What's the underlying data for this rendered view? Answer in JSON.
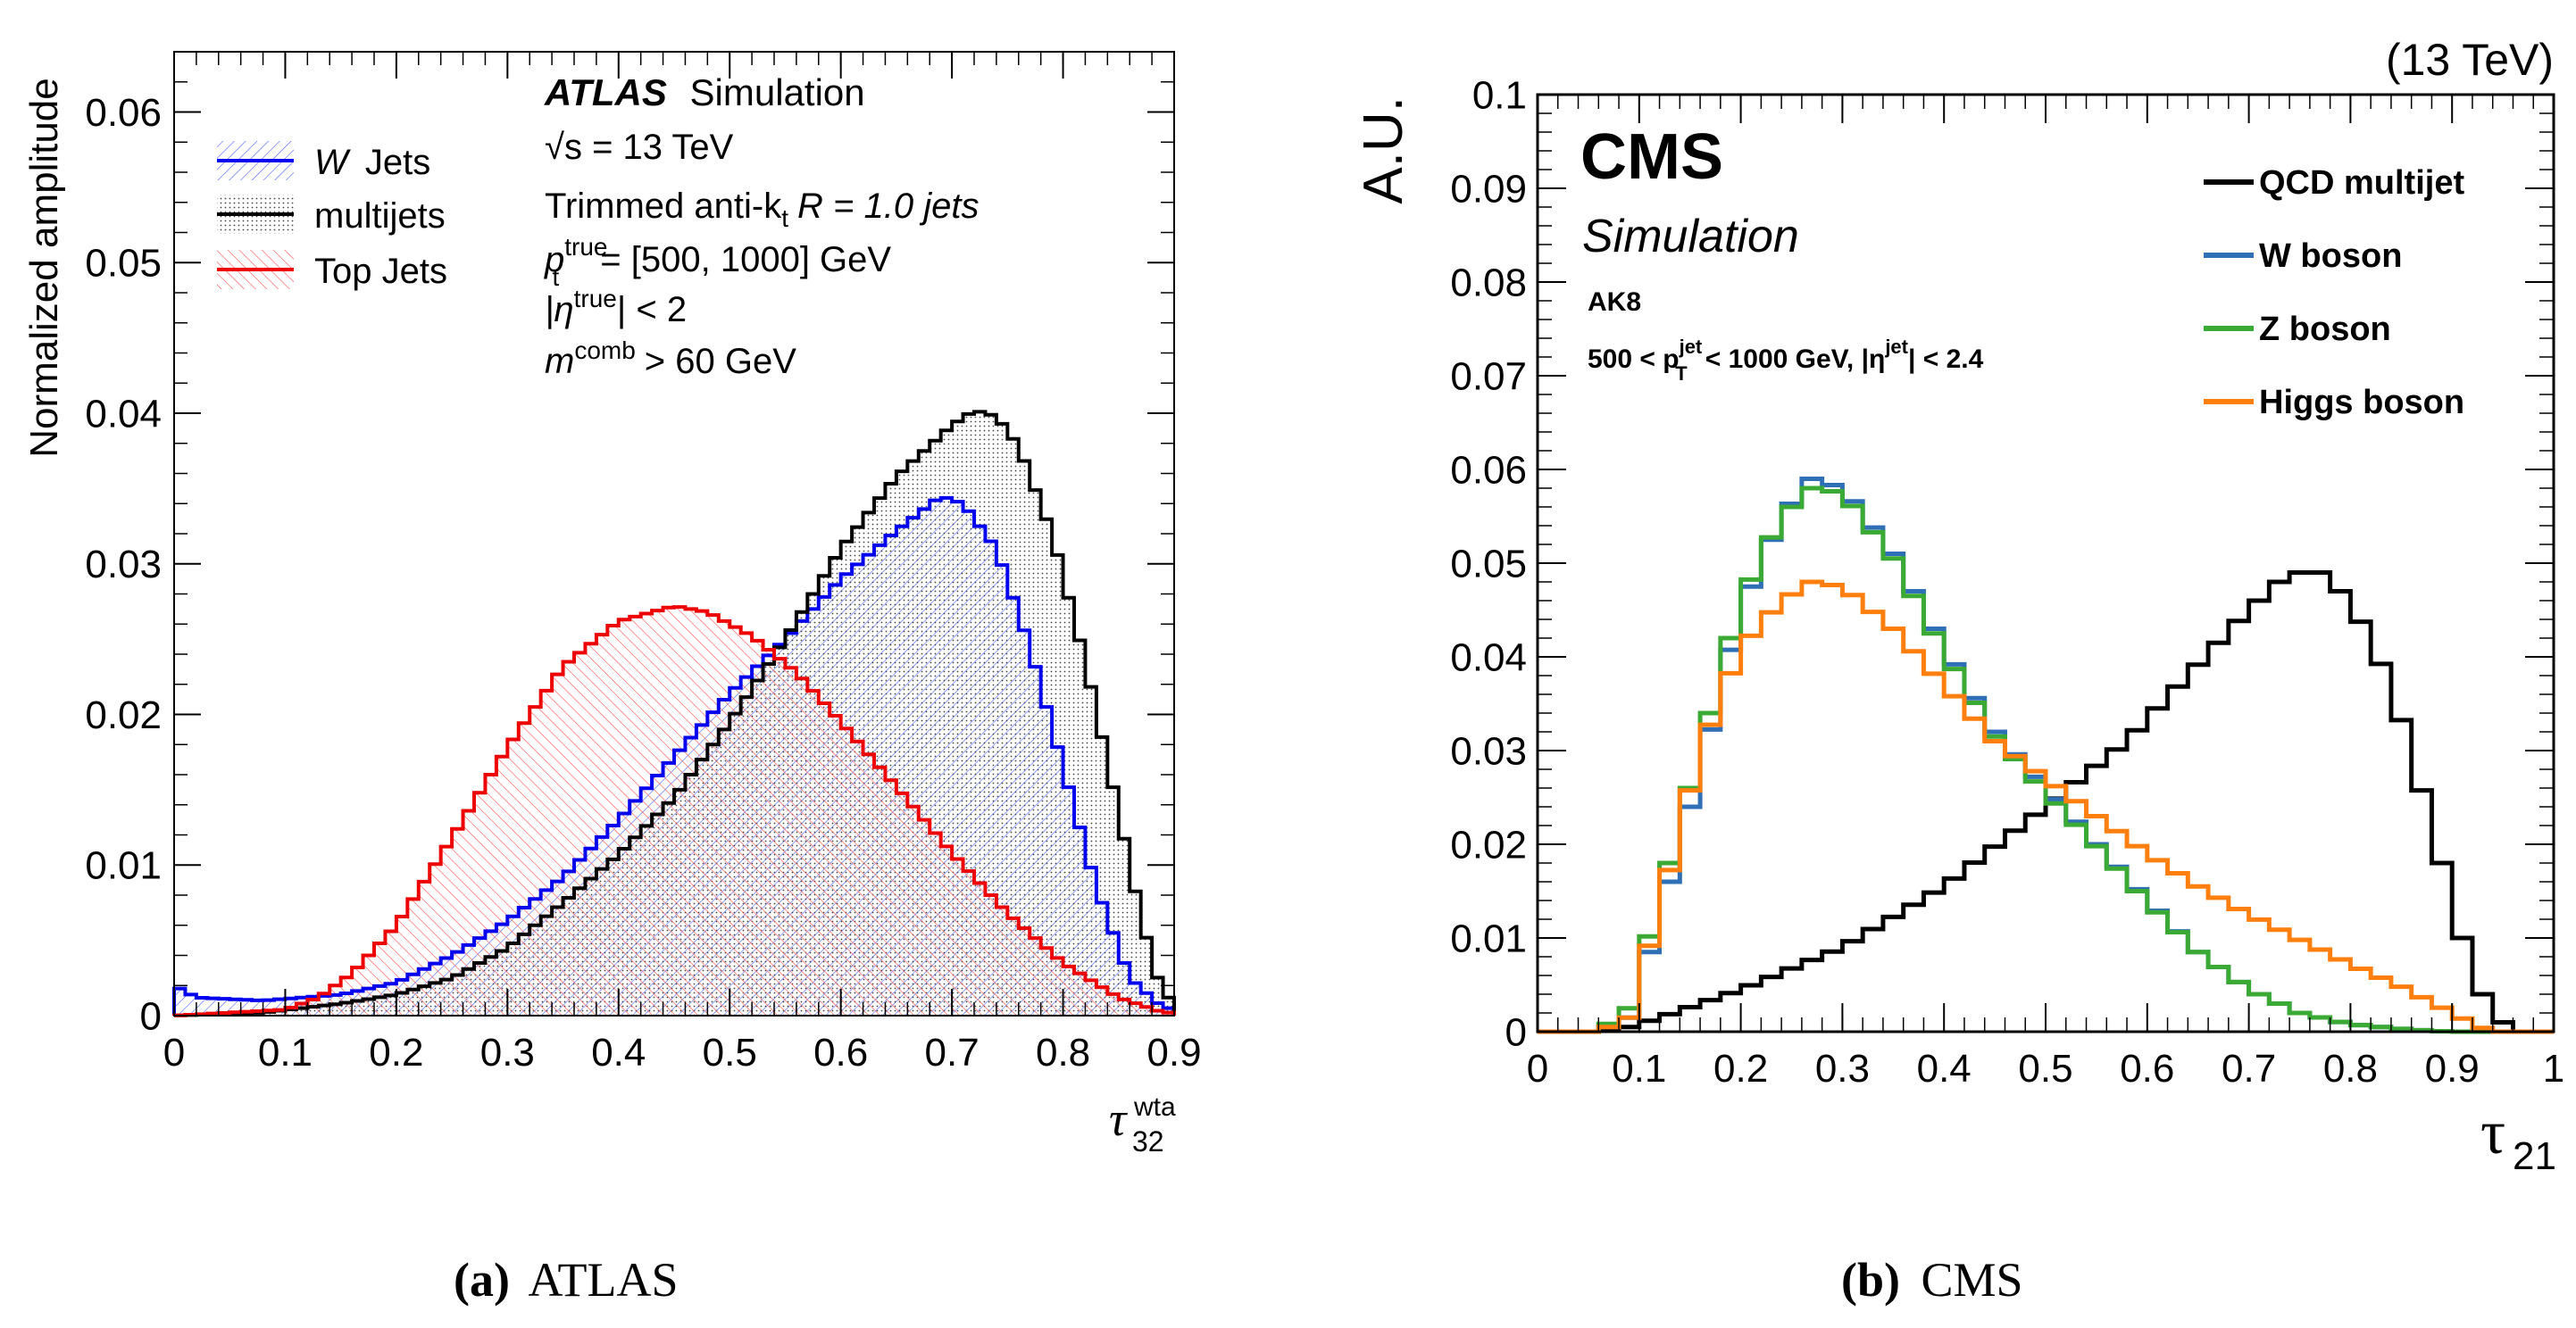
{
  "chart_data": [
    {
      "type": "step-histogram",
      "panel_id": "atlas",
      "caption_letter": "(a)",
      "caption_name": "ATLAS",
      "brand": "ATLAS",
      "brand_suffix": "Simulation",
      "info_lines": [
        "√s = 13 TeV",
        "Trimmed anti-k",
        "R = 1.0 jets",
        "p",
        "= [500, 1000] GeV",
        "|η",
        "| < 2",
        "m",
        "> 60 GeV"
      ],
      "info_sub_t": "t",
      "info_sup_true": "true",
      "info_sup_comb": "comb",
      "ylabel": "Normalized amplitude",
      "xlabel_main": "τ",
      "xlabel_sub": "32",
      "xlabel_sup": "wta",
      "xlim": [
        0,
        0.9
      ],
      "ylim": [
        0,
        0.064
      ],
      "xticks": [
        0,
        0.1,
        0.2,
        0.3,
        0.4,
        0.5,
        0.6,
        0.7,
        0.8,
        0.9
      ],
      "xtick_labels": [
        "0",
        "0.1",
        "0.2",
        "0.3",
        "0.4",
        "0.5",
        "0.6",
        "0.7",
        "0.8",
        "0.9"
      ],
      "yticks": [
        0,
        0.01,
        0.02,
        0.03,
        0.04,
        0.05,
        0.06
      ],
      "ytick_labels": [
        "0",
        "0.01",
        "0.02",
        "0.03",
        "0.04",
        "0.05",
        "0.06"
      ],
      "bin_width": 0.01,
      "legend": [
        "W",
        "Jets",
        "multijets",
        "Top Jets"
      ],
      "series": [
        {
          "name": "W Jets",
          "color": "#0000ee",
          "knots": [
            [
              0,
              0.002
            ],
            [
              0.02,
              0.0012
            ],
            [
              0.08,
              0.001
            ],
            [
              0.15,
              0.0014
            ],
            [
              0.2,
              0.0022
            ],
            [
              0.25,
              0.004
            ],
            [
              0.3,
              0.0063
            ],
            [
              0.35,
              0.0092
            ],
            [
              0.4,
              0.013
            ],
            [
              0.45,
              0.0172
            ],
            [
              0.5,
              0.0214
            ],
            [
              0.55,
              0.025
            ],
            [
              0.6,
              0.029
            ],
            [
              0.65,
              0.0322
            ],
            [
              0.69,
              0.0345
            ],
            [
              0.71,
              0.034
            ],
            [
              0.74,
              0.031
            ],
            [
              0.77,
              0.0245
            ],
            [
              0.8,
              0.0165
            ],
            [
              0.83,
              0.0085
            ],
            [
              0.86,
              0.0025
            ],
            [
              0.89,
              0.0005
            ]
          ]
        },
        {
          "name": "multijets",
          "color": "#000000",
          "knots": [
            [
              0,
              0.0
            ],
            [
              0.08,
              0.0002
            ],
            [
              0.15,
              0.0008
            ],
            [
              0.2,
              0.0014
            ],
            [
              0.25,
              0.0025
            ],
            [
              0.3,
              0.0045
            ],
            [
              0.35,
              0.0075
            ],
            [
              0.4,
              0.0107
            ],
            [
              0.45,
              0.0145
            ],
            [
              0.5,
              0.0195
            ],
            [
              0.55,
              0.025
            ],
            [
              0.6,
              0.031
            ],
            [
              0.65,
              0.0358
            ],
            [
              0.7,
              0.0392
            ],
            [
              0.72,
              0.0402
            ],
            [
              0.74,
              0.0398
            ],
            [
              0.76,
              0.0378
            ],
            [
              0.79,
              0.032
            ],
            [
              0.82,
              0.0235
            ],
            [
              0.85,
              0.0135
            ],
            [
              0.87,
              0.0065
            ],
            [
              0.89,
              0.0012
            ]
          ]
        },
        {
          "name": "Top Jets",
          "color": "#ee0000",
          "knots": [
            [
              0,
              0.0
            ],
            [
              0.1,
              0.0004
            ],
            [
              0.13,
              0.0012
            ],
            [
              0.16,
              0.0028
            ],
            [
              0.2,
              0.006
            ],
            [
              0.25,
              0.0118
            ],
            [
              0.3,
              0.0178
            ],
            [
              0.35,
              0.0232
            ],
            [
              0.4,
              0.0262
            ],
            [
              0.45,
              0.0272
            ],
            [
              0.48,
              0.0268
            ],
            [
              0.52,
              0.0252
            ],
            [
              0.56,
              0.0228
            ],
            [
              0.6,
              0.0195
            ],
            [
              0.65,
              0.0152
            ],
            [
              0.7,
              0.0108
            ],
            [
              0.75,
              0.0068
            ],
            [
              0.8,
              0.0035
            ],
            [
              0.85,
              0.0012
            ],
            [
              0.89,
              0.0002
            ]
          ]
        }
      ]
    },
    {
      "type": "step-histogram",
      "panel_id": "cms",
      "caption_letter": "(b)",
      "caption_name": "CMS",
      "brand": "CMS",
      "brand_suffix": "Simulation",
      "energy": "(13 TeV)",
      "info_lines": [
        "AK8",
        "500 < p",
        "< 1000 GeV, |η",
        "| < 2.4"
      ],
      "info_sup_jet": "jet",
      "info_sub_t": "T",
      "ylabel": "A.U.",
      "xlabel_main": "τ",
      "xlabel_sub": "21",
      "xlim": [
        0,
        1
      ],
      "ylim": [
        0,
        0.1
      ],
      "xticks": [
        0,
        0.1,
        0.2,
        0.3,
        0.4,
        0.5,
        0.6,
        0.7,
        0.8,
        0.9,
        1
      ],
      "xtick_labels": [
        "0",
        "0.1",
        "0.2",
        "0.3",
        "0.4",
        "0.5",
        "0.6",
        "0.7",
        "0.8",
        "0.9",
        "1"
      ],
      "yticks": [
        0,
        0.01,
        0.02,
        0.03,
        0.04,
        0.05,
        0.06,
        0.07,
        0.08,
        0.09,
        0.1
      ],
      "ytick_labels": [
        "0",
        "0.01",
        "0.02",
        "0.03",
        "0.04",
        "0.05",
        "0.06",
        "0.07",
        "0.08",
        "0.09",
        "0.1"
      ],
      "bin_width": 0.02,
      "legend": [
        "QCD multijet",
        "W boson",
        "Z boson",
        "Higgs boson"
      ],
      "series": [
        {
          "name": "QCD multijet",
          "color": "#000000",
          "knots": [
            [
              0.06,
              0.0
            ],
            [
              0.09,
              0.0005
            ],
            [
              0.12,
              0.0015
            ],
            [
              0.2,
              0.0045
            ],
            [
              0.3,
              0.009
            ],
            [
              0.4,
              0.0155
            ],
            [
              0.5,
              0.024
            ],
            [
              0.58,
              0.031
            ],
            [
              0.64,
              0.038
            ],
            [
              0.7,
              0.045
            ],
            [
              0.74,
              0.049
            ],
            [
              0.77,
              0.049
            ],
            [
              0.8,
              0.046
            ],
            [
              0.84,
              0.037
            ],
            [
              0.88,
              0.022
            ],
            [
              0.91,
              0.01
            ],
            [
              0.93,
              0.004
            ],
            [
              0.95,
              0.001
            ],
            [
              0.97,
              0.0
            ]
          ]
        },
        {
          "name": "W boson",
          "color": "#2f6fb5",
          "knots": [
            [
              0.06,
              0.0
            ],
            [
              0.09,
              0.0015
            ],
            [
              0.12,
              0.012
            ],
            [
              0.16,
              0.028
            ],
            [
              0.2,
              0.045
            ],
            [
              0.24,
              0.055
            ],
            [
              0.27,
              0.059
            ],
            [
              0.3,
              0.058
            ],
            [
              0.35,
              0.051
            ],
            [
              0.4,
              0.041
            ],
            [
              0.45,
              0.032
            ],
            [
              0.5,
              0.026
            ],
            [
              0.55,
              0.02
            ],
            [
              0.6,
              0.014
            ],
            [
              0.65,
              0.0085
            ],
            [
              0.7,
              0.0045
            ],
            [
              0.75,
              0.002
            ],
            [
              0.8,
              0.0008
            ],
            [
              0.86,
              0.0002
            ],
            [
              0.9,
              0.0
            ]
          ]
        },
        {
          "name": "Z boson",
          "color": "#3aaa35",
          "knots": [
            [
              0.06,
              0.0
            ],
            [
              0.09,
              0.0025
            ],
            [
              0.12,
              0.014
            ],
            [
              0.16,
              0.03
            ],
            [
              0.2,
              0.046
            ],
            [
              0.24,
              0.055
            ],
            [
              0.27,
              0.058
            ],
            [
              0.3,
              0.0575
            ],
            [
              0.35,
              0.0505
            ],
            [
              0.4,
              0.0405
            ],
            [
              0.45,
              0.0315
            ],
            [
              0.5,
              0.0255
            ],
            [
              0.55,
              0.0198
            ],
            [
              0.6,
              0.0138
            ],
            [
              0.65,
              0.0085
            ],
            [
              0.7,
              0.0045
            ],
            [
              0.75,
              0.002
            ],
            [
              0.8,
              0.0008
            ],
            [
              0.86,
              0.0002
            ],
            [
              0.9,
              0.0
            ]
          ]
        },
        {
          "name": "Higgs boson",
          "color": "#ff7f0e",
          "knots": [
            [
              0.06,
              0.0
            ],
            [
              0.09,
              0.0015
            ],
            [
              0.12,
              0.013
            ],
            [
              0.16,
              0.03
            ],
            [
              0.2,
              0.041
            ],
            [
              0.24,
              0.046
            ],
            [
              0.27,
              0.048
            ],
            [
              0.3,
              0.0475
            ],
            [
              0.35,
              0.043
            ],
            [
              0.4,
              0.037
            ],
            [
              0.45,
              0.031
            ],
            [
              0.5,
              0.027
            ],
            [
              0.55,
              0.023
            ],
            [
              0.6,
              0.019
            ],
            [
              0.65,
              0.0155
            ],
            [
              0.7,
              0.0125
            ],
            [
              0.75,
              0.0098
            ],
            [
              0.8,
              0.0072
            ],
            [
              0.85,
              0.0048
            ],
            [
              0.9,
              0.002
            ],
            [
              0.92,
              0.0008
            ],
            [
              0.94,
              0.0
            ]
          ]
        }
      ]
    }
  ]
}
